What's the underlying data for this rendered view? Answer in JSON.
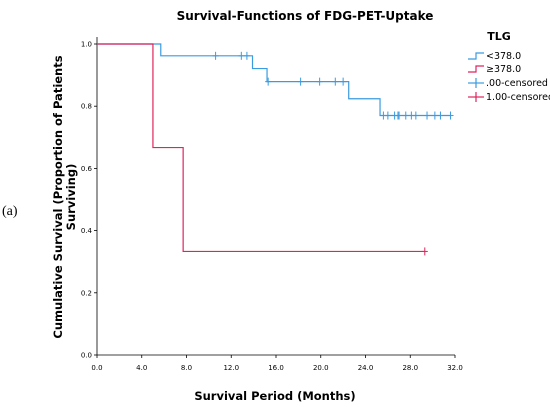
{
  "panel_label": "(a)",
  "chart_data": {
    "type": "line",
    "title": "Survival-Functions of FDG-PET-Uptake",
    "xlabel": "Survival Period (Months)",
    "ylabel_lines": [
      "Cumulative Survival (Proportion of Patients",
      "Surviving)"
    ],
    "xlim": [
      0,
      32.0
    ],
    "ylim": [
      0,
      1.0
    ],
    "xticks": [
      "0.0",
      "4.0",
      "8.0",
      "12.0",
      "16.0",
      "20.0",
      "24.0",
      "28.0",
      "32.0"
    ],
    "yticks": [
      "0.0",
      "0.2",
      "0.4",
      "0.6",
      "0.8",
      "1.0"
    ],
    "grid": false,
    "legend_position": "right",
    "legend": {
      "title": "TLG",
      "entries": [
        "<378.0",
        "≥378.0",
        ".00-censored",
        "1.00-censored"
      ]
    },
    "series": [
      {
        "name": "<378.0",
        "color": "#3b9be0",
        "steps": [
          [
            0,
            1.0
          ],
          [
            5.7,
            0.962
          ],
          [
            13.9,
            0.962
          ],
          [
            13.9,
            0.921
          ],
          [
            15.2,
            0.921
          ],
          [
            15.2,
            0.879
          ],
          [
            22.5,
            0.879
          ],
          [
            22.5,
            0.824
          ],
          [
            25.3,
            0.824
          ],
          [
            25.3,
            0.77
          ],
          [
            31.6,
            0.77
          ]
        ],
        "censored_x": [
          10.6,
          12.9,
          13.4,
          15.3,
          18.2,
          19.9,
          21.3,
          22.0,
          25.6,
          26.0,
          26.6,
          26.9,
          27.0,
          27.6,
          28.1,
          28.5,
          29.5,
          30.2,
          30.7,
          31.6
        ]
      },
      {
        "name": "≥378.0",
        "color": "#e0245e",
        "steps": [
          [
            0,
            1.0
          ],
          [
            5.0,
            1.0
          ],
          [
            5.0,
            0.667
          ],
          [
            7.7,
            0.667
          ],
          [
            7.7,
            0.333
          ],
          [
            29.3,
            0.333
          ]
        ],
        "censored_x": [
          29.3
        ]
      }
    ]
  }
}
